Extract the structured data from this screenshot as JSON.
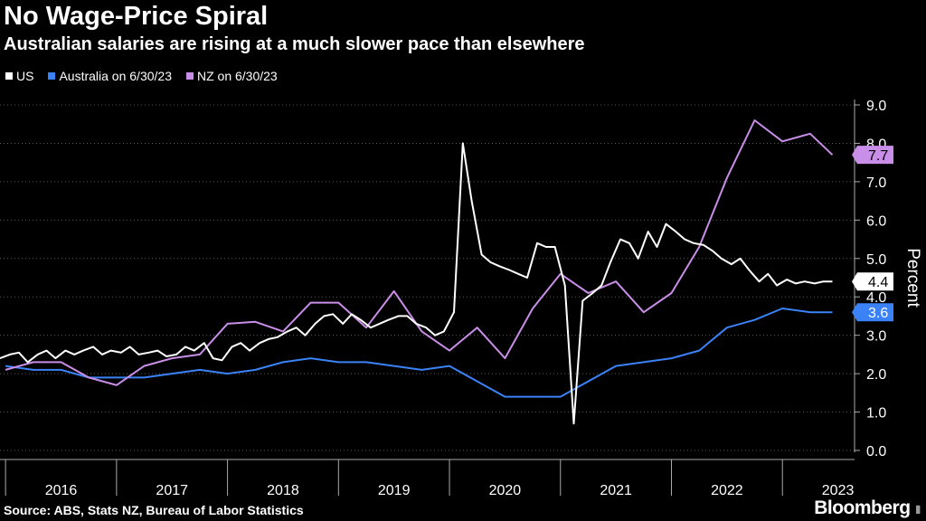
{
  "title": "No Wage-Price Spiral",
  "subtitle": "Australian salaries are rising at a much slower pace than elsewhere",
  "source": "Source: ABS, Stats NZ, Bureau of Labor Statistics",
  "brand": "Bloomberg",
  "chart_data": {
    "type": "line",
    "xlabel": "",
    "ylabel": "Percent",
    "ylim": [
      0,
      9
    ],
    "yticks": [
      0,
      1,
      2,
      3,
      4,
      5,
      6,
      7,
      8,
      9
    ],
    "ytick_labels": [
      "0.0",
      "1.0",
      "2.0",
      "3.0",
      "4.0",
      "5.0",
      "6.0",
      "7.0",
      "8.0",
      "9.0"
    ],
    "xlim": [
      2015.95,
      2023.65
    ],
    "x_categories": [
      "2016",
      "2017",
      "2018",
      "2019",
      "2020",
      "2021",
      "2022",
      "2023"
    ],
    "grid": true,
    "legend": "top-left",
    "series": [
      {
        "name": "US",
        "color": "#ffffff",
        "end_label": "4.4",
        "x": [
          2015.95,
          2016.04,
          2016.12,
          2016.2,
          2016.29,
          2016.37,
          2016.45,
          2016.54,
          2016.62,
          2016.7,
          2016.79,
          2016.87,
          2016.95,
          2017.04,
          2017.12,
          2017.2,
          2017.29,
          2017.37,
          2017.45,
          2017.54,
          2017.62,
          2017.7,
          2017.79,
          2017.87,
          2017.95,
          2018.04,
          2018.12,
          2018.2,
          2018.29,
          2018.37,
          2018.45,
          2018.54,
          2018.62,
          2018.7,
          2018.79,
          2018.87,
          2018.95,
          2019.04,
          2019.12,
          2019.2,
          2019.29,
          2019.37,
          2019.45,
          2019.54,
          2019.62,
          2019.7,
          2019.79,
          2019.87,
          2019.95,
          2020.04,
          2020.12,
          2020.2,
          2020.29,
          2020.37,
          2020.45,
          2020.54,
          2020.62,
          2020.7,
          2020.79,
          2020.87,
          2020.95,
          2021.04,
          2021.12,
          2021.2,
          2021.29,
          2021.37,
          2021.45,
          2021.54,
          2021.62,
          2021.7,
          2021.79,
          2021.87,
          2021.95,
          2022.04,
          2022.12,
          2022.2,
          2022.29,
          2022.37,
          2022.45,
          2022.54,
          2022.62,
          2022.7,
          2022.79,
          2022.87,
          2022.95,
          2023.04,
          2023.12,
          2023.2,
          2023.29,
          2023.37,
          2023.45
        ],
        "values": [
          2.4,
          2.5,
          2.55,
          2.3,
          2.5,
          2.6,
          2.4,
          2.6,
          2.5,
          2.6,
          2.7,
          2.5,
          2.6,
          2.55,
          2.7,
          2.5,
          2.55,
          2.6,
          2.45,
          2.5,
          2.7,
          2.6,
          2.8,
          2.4,
          2.35,
          2.7,
          2.8,
          2.6,
          2.8,
          2.9,
          2.95,
          3.1,
          3.2,
          3.0,
          3.3,
          3.5,
          3.55,
          3.3,
          3.55,
          3.4,
          3.2,
          3.3,
          3.4,
          3.5,
          3.5,
          3.3,
          3.2,
          3.0,
          3.1,
          3.6,
          8.0,
          6.5,
          5.1,
          4.9,
          4.8,
          4.7,
          4.6,
          4.5,
          5.4,
          5.3,
          5.3,
          4.3,
          0.7,
          3.9,
          4.1,
          4.3,
          4.9,
          5.5,
          5.4,
          5.0,
          5.7,
          5.3,
          5.9,
          5.7,
          5.5,
          5.4,
          5.35,
          5.2,
          5.0,
          4.85,
          5.0,
          4.7,
          4.4,
          4.6,
          4.3,
          4.45,
          4.35,
          4.4,
          4.35,
          4.4,
          4.4
        ]
      },
      {
        "name": "Australia on 6/30/23",
        "color": "#3b82f6",
        "end_label": "3.6",
        "x": [
          2016.0,
          2016.25,
          2016.5,
          2016.75,
          2017.0,
          2017.25,
          2017.5,
          2017.75,
          2018.0,
          2018.25,
          2018.5,
          2018.75,
          2019.0,
          2019.25,
          2019.5,
          2019.75,
          2020.0,
          2020.25,
          2020.5,
          2020.75,
          2021.0,
          2021.25,
          2021.5,
          2021.75,
          2022.0,
          2022.25,
          2022.5,
          2022.75,
          2023.0,
          2023.25,
          2023.45
        ],
        "values": [
          2.2,
          2.1,
          2.1,
          1.9,
          1.9,
          1.9,
          2.0,
          2.1,
          2.0,
          2.1,
          2.3,
          2.4,
          2.3,
          2.3,
          2.2,
          2.1,
          2.2,
          1.8,
          1.4,
          1.4,
          1.4,
          1.8,
          2.2,
          2.3,
          2.4,
          2.6,
          3.2,
          3.4,
          3.7,
          3.6,
          3.6
        ]
      },
      {
        "name": "NZ on 6/30/23",
        "color": "#c98ee8",
        "end_label": "7.7",
        "x": [
          2016.0,
          2016.25,
          2016.5,
          2016.75,
          2017.0,
          2017.25,
          2017.5,
          2017.75,
          2018.0,
          2018.25,
          2018.5,
          2018.75,
          2019.0,
          2019.25,
          2019.5,
          2019.75,
          2020.0,
          2020.25,
          2020.5,
          2020.75,
          2021.0,
          2021.25,
          2021.5,
          2021.75,
          2022.0,
          2022.25,
          2022.5,
          2022.75,
          2023.0,
          2023.25,
          2023.45
        ],
        "values": [
          2.1,
          2.3,
          2.3,
          1.9,
          1.7,
          2.2,
          2.4,
          2.5,
          3.3,
          3.35,
          3.1,
          3.85,
          3.85,
          3.2,
          4.15,
          3.1,
          2.6,
          3.2,
          2.4,
          3.7,
          4.6,
          4.1,
          4.4,
          3.6,
          4.1,
          5.3,
          7.1,
          8.6,
          8.05,
          8.25,
          7.7
        ]
      }
    ]
  }
}
